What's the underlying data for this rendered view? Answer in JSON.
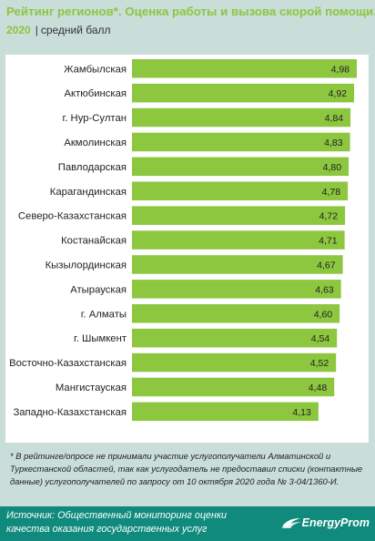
{
  "header": {
    "title": "Рейтинг регионов*. Оценка работы и вызова скорой помощи.",
    "year": "2020",
    "separator": "|",
    "unit": "средний балл"
  },
  "chart_data": {
    "type": "bar",
    "orientation": "horizontal",
    "categories": [
      "Жамбылская",
      "Актюбинская",
      "г. Нур-Султан",
      "Акмолинская",
      "Павлодарская",
      "Карагандинская",
      "Северо-Казахстанская",
      "Костанайская",
      "Кызылординская",
      "Атырауская",
      "г. Алматы",
      "г. Шымкент",
      "Восточно-Казахстанская",
      "Мангистауская",
      "Западно-Казахстанская"
    ],
    "values": [
      4.98,
      4.92,
      4.84,
      4.83,
      4.8,
      4.78,
      4.72,
      4.71,
      4.67,
      4.63,
      4.6,
      4.54,
      4.52,
      4.48,
      4.13
    ],
    "value_labels": [
      "4,98",
      "4,92",
      "4,84",
      "4,83",
      "4,80",
      "4,78",
      "4,72",
      "4,71",
      "4,67",
      "4,63",
      "4,60",
      "4,54",
      "4,52",
      "4,48",
      "4,13"
    ],
    "bar_color": "#8dc63f",
    "grid": false
  },
  "footnote": "* В рейтинге/опросе не принимали участие услугополучатели Алматинской и Туркестанской областей, так как услугодатель не предоставил списки (контактные данные) услугополучателей по запросу от 10 октября 2020 года № 3-04/1360-И.",
  "source": {
    "text": "Источник: Общественный мониторинг оценки качества оказания государственных услуг",
    "logo": "EnergyProm"
  },
  "colors": {
    "background": "#c9ddd9",
    "accent": "#8dc63f",
    "source_bar": "#0f8a7c",
    "chart_panel": "#ffffff"
  }
}
